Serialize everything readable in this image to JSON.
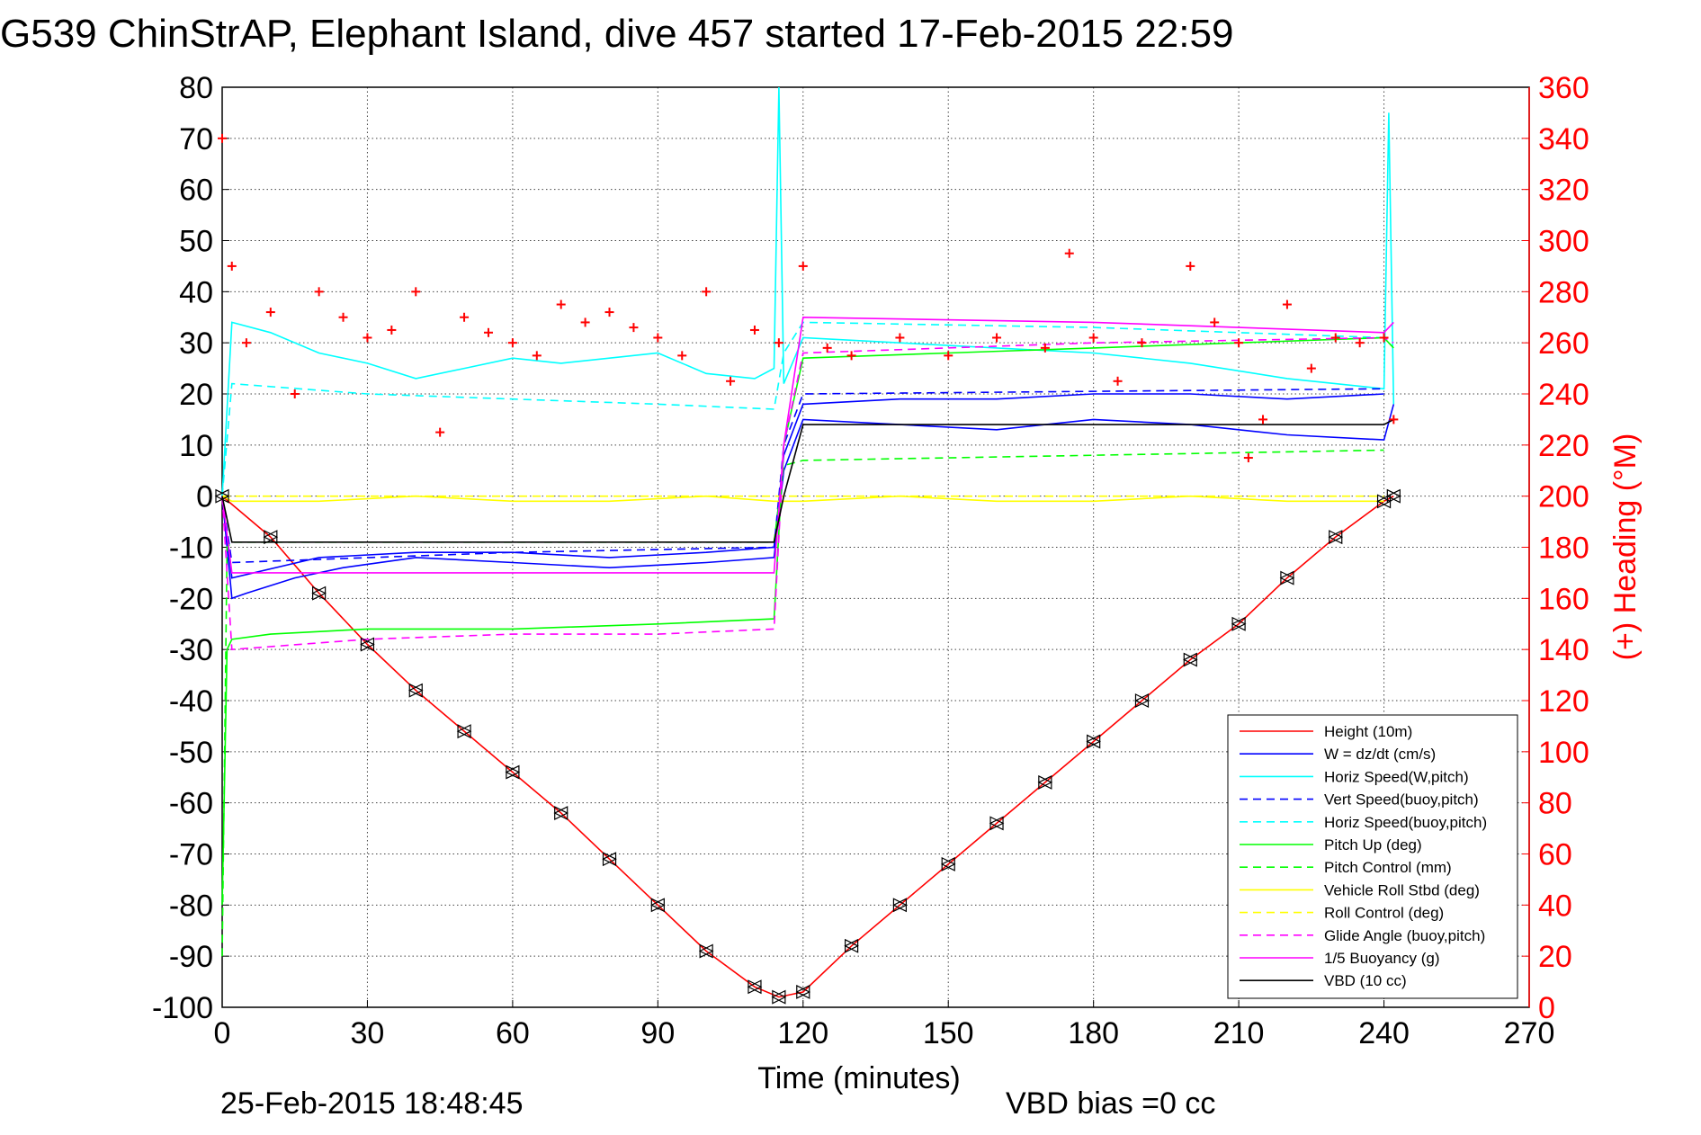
{
  "chart_data": {
    "type": "line",
    "title": "G539 ChinStrAP, Elephant Island, dive 457 started 17-Feb-2015 22:59",
    "xlabel": "Time (minutes)",
    "ylabel": "",
    "y2label": "(+) Heading (°M)",
    "xlim": [
      0,
      270
    ],
    "ylim": [
      -100,
      80
    ],
    "y2lim": [
      0,
      360
    ],
    "xticks": [
      "0",
      "30",
      "60",
      "90",
      "120",
      "150",
      "180",
      "210",
      "240",
      "270"
    ],
    "yticks": [
      "80",
      "70",
      "60",
      "50",
      "40",
      "30",
      "20",
      "10",
      "0",
      "-10",
      "-20",
      "-30",
      "-40",
      "-50",
      "-60",
      "-70",
      "-80",
      "-90",
      "-100"
    ],
    "y2ticks": [
      "360",
      "340",
      "320",
      "300",
      "280",
      "260",
      "240",
      "220",
      "200",
      "180",
      "160",
      "140",
      "120",
      "100",
      "80",
      "60",
      "40",
      "20",
      "0"
    ],
    "grid": true,
    "legend_position": "lower-right",
    "footer_left": "25-Feb-2015 18:48:45",
    "footer_right": "VBD bias =0 cc",
    "series": [
      {
        "name": "Height (10m)",
        "color": "#ff0000",
        "style": "solid",
        "x": [
          0,
          10,
          20,
          30,
          40,
          50,
          60,
          70,
          80,
          90,
          100,
          110,
          115,
          120,
          130,
          140,
          150,
          160,
          170,
          180,
          190,
          200,
          210,
          220,
          230,
          240,
          242
        ],
        "y": [
          0,
          -8,
          -19,
          -29,
          -38,
          -46,
          -54,
          -62,
          -71,
          -80,
          -89,
          -96,
          -98,
          -97,
          -88,
          -80,
          -72,
          -64,
          -56,
          -48,
          -40,
          -32,
          -25,
          -16,
          -8,
          -1,
          0
        ]
      },
      {
        "name": "W = dz/dt (cm/s)",
        "color": "#0000ff",
        "style": "solid",
        "x": [
          0,
          2,
          5,
          15,
          25,
          40,
          60,
          80,
          100,
          114,
          116,
          120,
          140,
          160,
          180,
          200,
          220,
          240,
          242
        ],
        "y": [
          0,
          -20,
          -19,
          -16,
          -14,
          -12,
          -13,
          -14,
          -13,
          -12,
          5,
          15,
          14,
          13,
          15,
          14,
          12,
          11,
          18
        ],
        "x2": [
          0,
          2,
          20,
          40,
          60,
          80,
          100,
          114,
          116,
          120,
          140,
          160,
          180,
          200,
          220,
          240
        ],
        "y2": [
          0,
          -16,
          -12,
          -11,
          -11,
          -12,
          -11,
          -10,
          8,
          18,
          19,
          19,
          20,
          20,
          19,
          20
        ]
      },
      {
        "name": "Horiz Speed(W,pitch)",
        "color": "#00ffff",
        "style": "solid",
        "x": [
          0,
          2,
          10,
          20,
          30,
          40,
          50,
          60,
          70,
          80,
          90,
          100,
          110,
          114,
          115,
          116,
          120,
          140,
          160,
          180,
          200,
          220,
          240,
          241,
          242
        ],
        "y": [
          0,
          34,
          32,
          28,
          26,
          23,
          25,
          27,
          26,
          27,
          28,
          24,
          23,
          25,
          80,
          22,
          31,
          30,
          29,
          28,
          26,
          23,
          21,
          75,
          18
        ]
      },
      {
        "name": "Vert Speed(buoy,pitch)",
        "color": "#0000ff",
        "style": "dashed",
        "x": [
          0,
          2,
          60,
          114,
          116,
          120,
          240
        ],
        "y": [
          0,
          -13,
          -11,
          -10,
          10,
          20,
          21
        ]
      },
      {
        "name": "Horiz Speed(buoy,pitch)",
        "color": "#00ffff",
        "style": "dashed",
        "x": [
          0,
          2,
          30,
          60,
          90,
          114,
          116,
          120,
          180,
          240
        ],
        "y": [
          0,
          22,
          20,
          19,
          18,
          17,
          28,
          34,
          33,
          31
        ]
      },
      {
        "name": "Pitch Up (deg)",
        "color": "#00ff00",
        "style": "solid",
        "x": [
          0,
          1,
          2,
          10,
          30,
          60,
          90,
          114,
          116,
          120,
          150,
          180,
          210,
          240,
          242
        ],
        "y": [
          -80,
          -30,
          -28,
          -27,
          -26,
          -26,
          -25,
          -24,
          10,
          27,
          28,
          29,
          30,
          31,
          29
        ]
      },
      {
        "name": "Pitch Control (mm)",
        "color": "#00ff00",
        "style": "dashed",
        "x": [
          0,
          1,
          2,
          60,
          114,
          116,
          120,
          180,
          240
        ],
        "y": [
          -90,
          -10,
          -9,
          -9,
          -9,
          6,
          7,
          8,
          9
        ]
      },
      {
        "name": "Vehicle Roll Stbd (deg)",
        "color": "#ffff00",
        "style": "solid",
        "x": [
          0,
          2,
          20,
          40,
          60,
          80,
          100,
          114,
          120,
          140,
          160,
          180,
          200,
          220,
          240
        ],
        "y": [
          0,
          -1,
          -1,
          0,
          -1,
          -1,
          0,
          -1,
          -1,
          0,
          -1,
          -1,
          0,
          -1,
          -1
        ]
      },
      {
        "name": "Roll Control (deg)",
        "color": "#ffff00",
        "style": "dashed",
        "x": [
          0,
          240
        ],
        "y": [
          0,
          0
        ]
      },
      {
        "name": "Glide Angle (buoy,pitch)",
        "color": "#ff00ff",
        "style": "dashed",
        "x": [
          0,
          2,
          30,
          60,
          90,
          114,
          116,
          120,
          180,
          240,
          242
        ],
        "y": [
          0,
          -30,
          -28,
          -27,
          -27,
          -26,
          10,
          28,
          30,
          31,
          30
        ]
      },
      {
        "name": "1/5 Buoyancy (g)",
        "color": "#ff00ff",
        "style": "solid",
        "x": [
          0,
          2,
          30,
          60,
          90,
          114,
          116,
          120,
          180,
          240,
          242
        ],
        "y": [
          0,
          -15,
          -15,
          -15,
          -15,
          -15,
          10,
          35,
          34,
          32,
          34
        ]
      },
      {
        "name": "VBD (10 cc)",
        "color": "#000000",
        "style": "solid",
        "x": [
          0,
          2,
          114,
          116,
          120,
          240,
          242
        ],
        "y": [
          0,
          -9,
          -9,
          0,
          14,
          14,
          15
        ]
      },
      {
        "name": "(+) Heading",
        "color": "#ff0000",
        "style": "markers",
        "axis": "right",
        "x": [
          0,
          2,
          5,
          10,
          15,
          20,
          25,
          30,
          35,
          40,
          45,
          50,
          55,
          60,
          65,
          70,
          75,
          80,
          85,
          90,
          95,
          100,
          105,
          110,
          115,
          120,
          125,
          130,
          140,
          150,
          160,
          170,
          175,
          180,
          185,
          190,
          200,
          205,
          210,
          212,
          215,
          220,
          225,
          230,
          235,
          240,
          242
        ],
        "y": [
          340,
          290,
          260,
          272,
          240,
          280,
          270,
          262,
          265,
          280,
          225,
          270,
          264,
          260,
          255,
          275,
          268,
          272,
          266,
          262,
          255,
          280,
          245,
          265,
          260,
          290,
          258,
          255,
          262,
          255,
          262,
          258,
          295,
          262,
          245,
          260,
          290,
          268,
          260,
          215,
          230,
          275,
          250,
          262,
          260,
          262,
          230
        ]
      }
    ]
  }
}
